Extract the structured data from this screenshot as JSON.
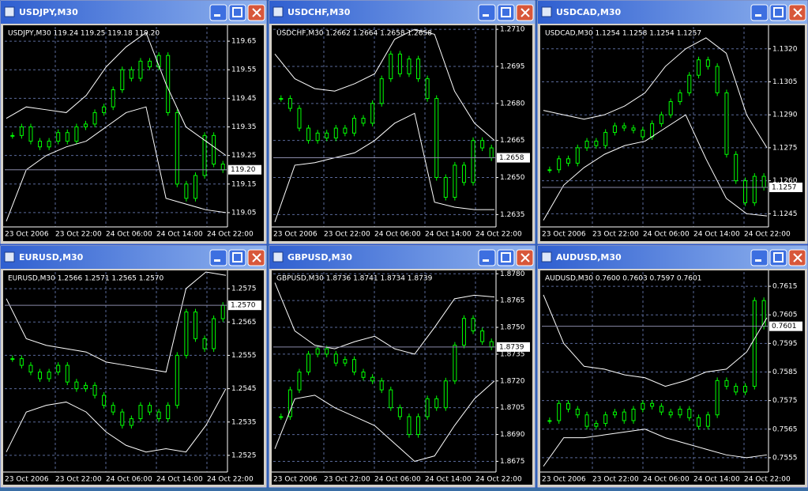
{
  "windows": [
    {
      "title": "USDJPY,M30",
      "chart": {
        "type": "candle",
        "header": "USDJPY,M30  119.24 119.25 119.18 119.20",
        "ylim": [
          119.0,
          119.7
        ],
        "yticks": [
          119.05,
          119.15,
          {
            "value": 119.25,
            "label": "119.25"
          },
          119.35,
          119.45,
          119.55,
          119.65
        ],
        "xticks": [
          "23 Oct 2006",
          "23 Oct 22:00",
          "24 Oct 06:00",
          "24 Oct 14:00",
          "24 Oct 22:00"
        ],
        "last": {
          "value": 119.2,
          "label": "119.20"
        },
        "closes": [
          119.32,
          119.35,
          119.3,
          119.28,
          119.3,
          119.33,
          119.3,
          119.35,
          119.36,
          119.4,
          119.42,
          119.48,
          119.55,
          119.52,
          119.58,
          119.56,
          119.6,
          119.4,
          119.15,
          119.1,
          119.18,
          119.32,
          119.22,
          119.2
        ],
        "upper": [
          119.38,
          119.42,
          119.41,
          119.4,
          119.46,
          119.56,
          119.63,
          119.68,
          119.5,
          119.35,
          119.3,
          119.25
        ],
        "lower": [
          119.02,
          119.2,
          119.25,
          119.28,
          119.3,
          119.35,
          119.4,
          119.42,
          119.1,
          119.08,
          119.06,
          119.05
        ]
      }
    },
    {
      "title": "USDCHF,M30",
      "chart": {
        "type": "candle",
        "header": "USDCHF,M30  1.2662 1.2664 1.2658 1.2658",
        "ylim": [
          1.263,
          1.2711
        ],
        "yticks": [
          1.2635,
          {
            "value": 1.265,
            "label": "1.2650"
          },
          1.2665,
          {
            "value": 1.268,
            "label": "1.2680"
          },
          1.2695,
          {
            "value": 1.271,
            "label": "1.2710"
          }
        ],
        "xticks": [
          "23 Oct 2006",
          "23 Oct 22:00",
          "24 Oct 06:00",
          "24 Oct 14:00",
          "24 Oct 22:00"
        ],
        "last": {
          "value": 1.2658,
          "label": "1.2658"
        },
        "closes": [
          1.2682,
          1.2678,
          1.267,
          1.2665,
          1.2668,
          1.2666,
          1.267,
          1.2668,
          1.2674,
          1.2672,
          1.268,
          1.269,
          1.27,
          1.2692,
          1.2698,
          1.269,
          1.2682,
          1.265,
          1.2642,
          1.2655,
          1.2648,
          1.2665,
          1.2662,
          1.2658
        ],
        "upper": [
          1.27,
          1.269,
          1.2686,
          1.2685,
          1.2688,
          1.2692,
          1.2706,
          1.271,
          1.2708,
          1.2685,
          1.2672,
          1.2665
        ],
        "lower": [
          1.2632,
          1.2655,
          1.2656,
          1.2658,
          1.266,
          1.2665,
          1.2672,
          1.2676,
          1.264,
          1.2638,
          1.2637,
          1.2637
        ]
      }
    },
    {
      "title": "USDCAD,M30",
      "chart": {
        "type": "candle",
        "header": "USDCAD,M30  1.1254 1.1258 1.1254 1.1257",
        "ylim": [
          1.1239,
          1.133
        ],
        "yticks": [
          1.1245,
          {
            "value": 1.126,
            "label": "1.1260"
          },
          1.1275,
          {
            "value": 1.129,
            "label": "1.1290"
          },
          1.1305,
          {
            "value": 1.132,
            "label": "1.1320"
          }
        ],
        "xticks": [
          "23 Oct 2006",
          "23 Oct 22:00",
          "24 Oct 06:00",
          "24 Oct 14:00",
          "24 Oct 22:00"
        ],
        "last": {
          "value": 1.1257,
          "label": "1.1257"
        },
        "closes": [
          1.1265,
          1.127,
          1.1268,
          1.1275,
          1.1278,
          1.1276,
          1.1282,
          1.1285,
          1.1284,
          1.1283,
          1.128,
          1.1286,
          1.129,
          1.1296,
          1.13,
          1.1308,
          1.1315,
          1.1312,
          1.13,
          1.1272,
          1.126,
          1.125,
          1.1262,
          1.1257
        ],
        "upper": [
          1.1292,
          1.129,
          1.1288,
          1.129,
          1.1294,
          1.13,
          1.1312,
          1.132,
          1.1325,
          1.1318,
          1.129,
          1.1275
        ],
        "lower": [
          1.1242,
          1.1258,
          1.1266,
          1.1272,
          1.1276,
          1.1278,
          1.1284,
          1.129,
          1.127,
          1.1252,
          1.1245,
          1.1244
        ]
      }
    },
    {
      "title": "EURUSD,M30",
      "chart": {
        "type": "candle",
        "header": "EURUSD,M30  1.2566 1.2571 1.2565 1.2570",
        "ylim": [
          1.252,
          1.258
        ],
        "yticks": [
          1.2525,
          1.2535,
          1.2545,
          1.2555,
          1.2565,
          1.2575
        ],
        "xticks": [
          "23 Oct 2006",
          "23 Oct 22:00",
          "24 Oct 06:00",
          "24 Oct 14:00",
          "24 Oct 22:00"
        ],
        "last": {
          "value": 1.257,
          "label": "1.2570"
        },
        "closes": [
          1.2554,
          1.2552,
          1.255,
          1.2548,
          1.255,
          1.2552,
          1.2547,
          1.2545,
          1.2546,
          1.2543,
          1.254,
          1.2538,
          1.2534,
          1.2536,
          1.254,
          1.2538,
          1.2536,
          1.254,
          1.2555,
          1.2568,
          1.256,
          1.2557,
          1.2566,
          1.257
        ],
        "upper": [
          1.2572,
          1.256,
          1.2558,
          1.2557,
          1.2556,
          1.2553,
          1.2552,
          1.2551,
          1.255,
          1.2575,
          1.258,
          1.2579
        ],
        "lower": [
          1.2526,
          1.2538,
          1.254,
          1.2541,
          1.2538,
          1.2532,
          1.2528,
          1.2526,
          1.2527,
          1.2526,
          1.2534,
          1.2545
        ]
      }
    },
    {
      "title": "GBPUSD,M30",
      "chart": {
        "type": "candle",
        "header": "GBPUSD,M30  1.8736 1.8741 1.8734 1.8739",
        "ylim": [
          1.8669,
          1.8781
        ],
        "yticks": [
          1.8675,
          {
            "value": 1.869,
            "label": "1.8690"
          },
          1.8705,
          {
            "value": 1.872,
            "label": "1.8720"
          },
          1.8735,
          {
            "value": 1.875,
            "label": "1.8750"
          },
          1.8765,
          {
            "value": 1.878,
            "label": "1.8780"
          }
        ],
        "xticks": [
          "23 Oct 2006",
          "23 Oct 22:00",
          "24 Oct 06:00",
          "24 Oct 14:00",
          "24 Oct 22:00"
        ],
        "last": {
          "value": 1.8739,
          "label": "1.8739"
        },
        "closes": [
          1.87,
          1.8715,
          1.8725,
          1.8735,
          1.8738,
          1.8735,
          1.873,
          1.8732,
          1.8725,
          1.8722,
          1.872,
          1.8715,
          1.8705,
          1.87,
          1.869,
          1.87,
          1.871,
          1.8705,
          1.872,
          1.874,
          1.8755,
          1.8748,
          1.8742,
          1.8739
        ],
        "upper": [
          1.8775,
          1.8748,
          1.874,
          1.8738,
          1.8742,
          1.8745,
          1.8738,
          1.8735,
          1.875,
          1.8766,
          1.8768,
          1.8767
        ],
        "lower": [
          1.8682,
          1.871,
          1.8712,
          1.8705,
          1.87,
          1.8695,
          1.8685,
          1.8675,
          1.8678,
          1.8695,
          1.871,
          1.872
        ]
      }
    },
    {
      "title": "AUDUSD,M30",
      "chart": {
        "type": "candle",
        "header": "AUDUSD,M30  0.7600 0.7603 0.7597 0.7601",
        "ylim": [
          0.755,
          0.762
        ],
        "yticks": [
          0.7555,
          0.7565,
          0.7575,
          0.7585,
          0.7595,
          0.7605,
          0.7615
        ],
        "xticks": [
          "23 Oct 2006",
          "23 Oct 22:00",
          "24 Oct 06:00",
          "24 Oct 14:00",
          "24 Oct 22:00"
        ],
        "last": {
          "value": 0.7601,
          "label": "0.7601"
        },
        "closes": [
          0.7568,
          0.7574,
          0.7572,
          0.757,
          0.7566,
          0.7567,
          0.757,
          0.7571,
          0.7568,
          0.7572,
          0.7574,
          0.7573,
          0.7571,
          0.757,
          0.7572,
          0.7569,
          0.7566,
          0.757,
          0.7582,
          0.758,
          0.7578,
          0.758,
          0.761,
          0.7601
        ],
        "upper": [
          0.7612,
          0.7595,
          0.7587,
          0.7586,
          0.7584,
          0.7583,
          0.758,
          0.7582,
          0.7585,
          0.7586,
          0.7592,
          0.7604
        ],
        "lower": [
          0.7552,
          0.7562,
          0.7562,
          0.7563,
          0.7564,
          0.7565,
          0.7562,
          0.756,
          0.7558,
          0.7556,
          0.7555,
          0.7556
        ]
      }
    }
  ]
}
